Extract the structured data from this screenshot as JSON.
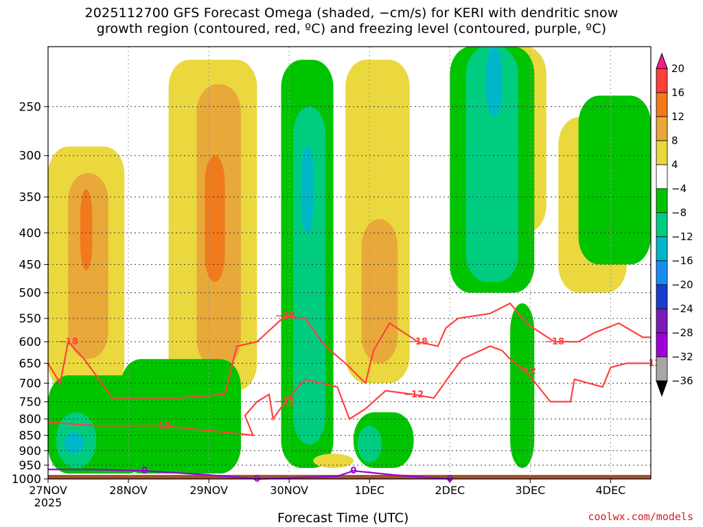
{
  "title_line1": "2025112700 GFS Forecast Omega (shaded, −cm/s) for KERI with dendritic snow",
  "title_line2": "growth region (contoured, red, ºC) and freezing level (contoured, purple, ºC)",
  "credit": "coolwx.com/models",
  "chart_data": {
    "type": "heatmap",
    "title": "2025112700 GFS Forecast Omega (shaded, −cm/s) for KERI with dendritic snow growth region (contoured, red, ºC) and freezing level (contoured, purple, ºC)",
    "xlabel": "Forecast Time (UTC)",
    "ylabel": "",
    "x_ticks": [
      {
        "label": "27NOV",
        "sub": "2025",
        "day": 0
      },
      {
        "label": "28NOV",
        "day": 1
      },
      {
        "label": "29NOV",
        "day": 2
      },
      {
        "label": "30NOV",
        "day": 3
      },
      {
        "label": "1DEC",
        "day": 4
      },
      {
        "label": "2DEC",
        "day": 5
      },
      {
        "label": "3DEC",
        "day": 6
      },
      {
        "label": "4DEC",
        "day": 7
      }
    ],
    "xlim_days": [
      0,
      7.5
    ],
    "y_ticks": [
      250,
      300,
      350,
      400,
      450,
      500,
      550,
      600,
      650,
      700,
      750,
      800,
      850,
      900,
      950,
      1000
    ],
    "ylim_hpa": [
      1000,
      200
    ],
    "y_scale": "log",
    "grid": true,
    "colorbar": {
      "labels": [
        "20",
        "16",
        "12",
        "8",
        "4",
        "−4",
        "−8",
        "−12",
        "−16",
        "−20",
        "−24",
        "−28",
        "−32",
        "−36"
      ],
      "colors": [
        "#ff1a8c",
        "#ff3e3e",
        "#f07a1c",
        "#e8a93a",
        "#ead83e",
        "#ffffff",
        "#00c400",
        "#00cc80",
        "#00b7c8",
        "#1a8cf0",
        "#1a3ccc",
        "#7a1ab8",
        "#9c00d8",
        "#a6a6a6",
        "#000000"
      ]
    },
    "shaded_regions": [
      {
        "level": "4-8",
        "t": [
          0.0,
          0.95
        ],
        "p": [
          290,
          720
        ]
      },
      {
        "level": "8-12",
        "t": [
          0.25,
          0.75
        ],
        "p": [
          320,
          640
        ]
      },
      {
        "level": "12-16",
        "t": [
          0.4,
          0.55
        ],
        "p": [
          340,
          460
        ]
      },
      {
        "level": "4-8",
        "t": [
          1.5,
          2.6
        ],
        "p": [
          210,
          720
        ]
      },
      {
        "level": "8-12",
        "t": [
          1.85,
          2.4
        ],
        "p": [
          230,
          660
        ]
      },
      {
        "level": "12-16",
        "t": [
          1.95,
          2.2
        ],
        "p": [
          300,
          480
        ]
      },
      {
        "level": "4-8",
        "t": [
          3.7,
          4.5
        ],
        "p": [
          210,
          700
        ]
      },
      {
        "level": "8-12",
        "t": [
          3.9,
          4.35
        ],
        "p": [
          380,
          650
        ]
      },
      {
        "level": "4-8",
        "t": [
          5.3,
          6.2
        ],
        "p": [
          200,
          400
        ]
      },
      {
        "level": "4-8",
        "t": [
          6.35,
          7.2
        ],
        "p": [
          260,
          500
        ]
      },
      {
        "level": "-8--4",
        "t": [
          0.0,
          1.25
        ],
        "p": [
          680,
          980
        ]
      },
      {
        "level": "-8--4",
        "t": [
          0.9,
          2.4
        ],
        "p": [
          640,
          980
        ]
      },
      {
        "level": "-12--8",
        "t": [
          0.1,
          0.6
        ],
        "p": [
          780,
          960
        ]
      },
      {
        "level": "-16--12",
        "t": [
          0.2,
          0.45
        ],
        "p": [
          840,
          910
        ]
      },
      {
        "level": "-8--4",
        "t": [
          2.9,
          3.55
        ],
        "p": [
          210,
          960
        ]
      },
      {
        "level": "-12--8",
        "t": [
          3.05,
          3.45
        ],
        "p": [
          250,
          880
        ]
      },
      {
        "level": "-16--12",
        "t": [
          3.15,
          3.3
        ],
        "p": [
          290,
          400
        ]
      },
      {
        "level": "-8--4",
        "t": [
          3.8,
          4.55
        ],
        "p": [
          780,
          960
        ]
      },
      {
        "level": "-12--8",
        "t": [
          3.85,
          4.15
        ],
        "p": [
          820,
          940
        ]
      },
      {
        "level": "-8--4",
        "t": [
          5.0,
          6.05
        ],
        "p": [
          200,
          500
        ]
      },
      {
        "level": "-12--8",
        "t": [
          5.2,
          5.85
        ],
        "p": [
          200,
          480
        ]
      },
      {
        "level": "-16--12",
        "t": [
          5.45,
          5.65
        ],
        "p": [
          200,
          260
        ]
      },
      {
        "level": "-8--4",
        "t": [
          5.75,
          6.05
        ],
        "p": [
          520,
          960
        ]
      },
      {
        "level": "-8--4",
        "t": [
          6.6,
          7.5
        ],
        "p": [
          240,
          450
        ]
      },
      {
        "level": "4-8",
        "t": [
          3.3,
          3.8
        ],
        "p": [
          910,
          960
        ]
      }
    ],
    "contours": [
      {
        "label": "−18",
        "color": "#ff4040",
        "points": [
          [
            0.0,
            650
          ],
          [
            0.15,
            700
          ],
          [
            0.25,
            600
          ],
          [
            0.45,
            640
          ],
          [
            0.8,
            740
          ],
          [
            1.6,
            740
          ],
          [
            2.2,
            730
          ],
          [
            2.35,
            610
          ],
          [
            2.6,
            600
          ],
          [
            2.95,
            545
          ],
          [
            3.2,
            550
          ],
          [
            3.45,
            610
          ],
          [
            3.7,
            650
          ],
          [
            3.95,
            700
          ],
          [
            4.05,
            620
          ],
          [
            4.25,
            560
          ],
          [
            4.6,
            600
          ],
          [
            4.85,
            610
          ],
          [
            4.95,
            570
          ],
          [
            5.1,
            550
          ],
          [
            5.5,
            540
          ],
          [
            5.75,
            520
          ],
          [
            5.95,
            560
          ],
          [
            6.3,
            600
          ],
          [
            6.6,
            600
          ],
          [
            6.8,
            580
          ],
          [
            7.1,
            560
          ],
          [
            7.4,
            590
          ],
          [
            7.5,
            590
          ]
        ]
      },
      {
        "label": "−12",
        "color": "#ff4040",
        "points": [
          [
            0.0,
            810
          ],
          [
            0.6,
            820
          ],
          [
            1.4,
            820
          ],
          [
            2.2,
            840
          ],
          [
            2.55,
            850
          ],
          [
            2.45,
            790
          ],
          [
            2.6,
            750
          ],
          [
            2.75,
            730
          ],
          [
            2.8,
            800
          ],
          [
            2.95,
            750
          ],
          [
            3.2,
            690
          ],
          [
            3.4,
            700
          ],
          [
            3.6,
            710
          ],
          [
            3.75,
            800
          ],
          [
            3.95,
            770
          ],
          [
            4.2,
            720
          ],
          [
            4.55,
            730
          ],
          [
            4.8,
            740
          ],
          [
            5.0,
            680
          ],
          [
            5.15,
            640
          ],
          [
            5.5,
            610
          ],
          [
            5.65,
            620
          ],
          [
            5.75,
            640
          ],
          [
            5.95,
            670
          ],
          [
            6.25,
            750
          ],
          [
            6.5,
            750
          ],
          [
            6.55,
            690
          ],
          [
            6.9,
            710
          ],
          [
            7.0,
            660
          ],
          [
            7.2,
            650
          ],
          [
            7.5,
            650
          ]
        ]
      }
    ],
    "freezing_level": {
      "label": "0",
      "color": "#9c00d8",
      "points": [
        [
          0.0,
          965
        ],
        [
          0.5,
          965
        ],
        [
          1.2,
          970
        ],
        [
          2.0,
          985
        ],
        [
          2.6,
          1000
        ],
        [
          3.6,
          990
        ],
        [
          3.8,
          970
        ],
        [
          4.3,
          985
        ],
        [
          5.0,
          1000
        ]
      ]
    }
  }
}
